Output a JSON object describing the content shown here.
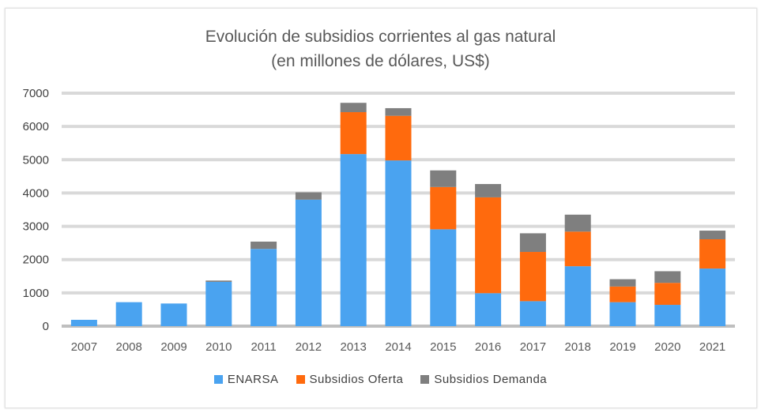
{
  "chart_data": {
    "type": "bar",
    "stacked": true,
    "title": "Evolución de subsidios corrientes al gas natural",
    "subtitle": "(en millones de dólares, US$)",
    "xlabel": "",
    "ylabel": "",
    "ylim": [
      0,
      7000
    ],
    "yticks": [
      0,
      1000,
      2000,
      3000,
      4000,
      5000,
      6000,
      7000
    ],
    "grid": true,
    "legend_position": "bottom",
    "categories": [
      "2007",
      "2008",
      "2009",
      "2010",
      "2011",
      "2012",
      "2013",
      "2014",
      "2015",
      "2016",
      "2017",
      "2018",
      "2019",
      "2020",
      "2021"
    ],
    "series": [
      {
        "name": "ENARSA",
        "color": "#4aa3f0",
        "values": [
          190,
          720,
          680,
          1330,
          2320,
          3800,
          5170,
          4980,
          2910,
          990,
          750,
          1800,
          720,
          640,
          1730
        ]
      },
      {
        "name": "Subsidios Oferta",
        "color": "#ff6a0d",
        "values": [
          0,
          0,
          0,
          0,
          0,
          0,
          1260,
          1340,
          1270,
          2880,
          1480,
          1040,
          470,
          660,
          880
        ]
      },
      {
        "name": "Subsidios Demanda",
        "color": "#7f7f7f",
        "values": [
          0,
          0,
          0,
          40,
          220,
          220,
          280,
          230,
          500,
          400,
          560,
          510,
          220,
          350,
          260
        ]
      }
    ]
  }
}
